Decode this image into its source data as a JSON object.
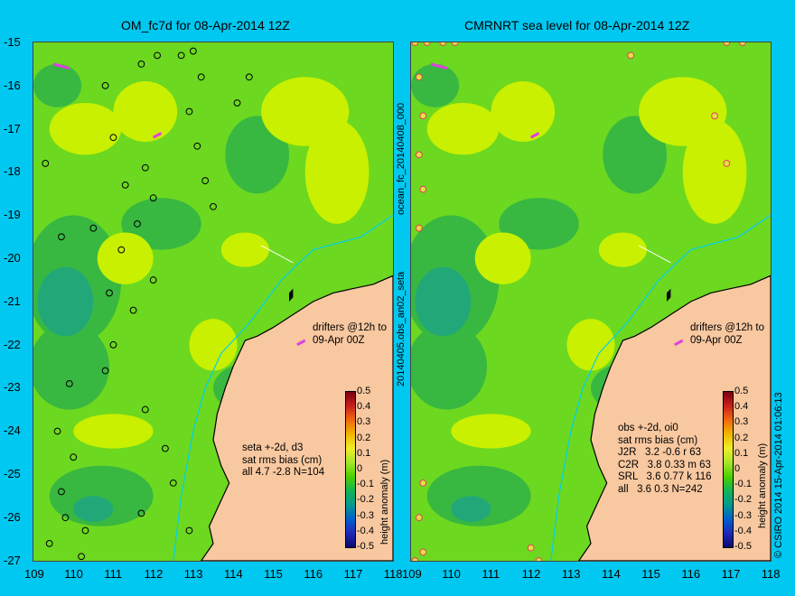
{
  "left_panel": {
    "title": "OM_fc7d for 08-Apr-2014 12Z",
    "drifters_note": "drifters @12h to\n09-Apr 00Z",
    "stats": "seta +-2d, d3\nsat rms bias (cm)\nall 4.7 -2.8 N=104"
  },
  "right_panel": {
    "title": "CMRNRT sea level  for 08-Apr-2014 12Z",
    "drifters_note": "drifters @12h to\n09-Apr 00Z",
    "stats": "obs +-2d, oi0\nsat rms bias (cm)\nJ2R   3.2 -0.6 r 63\nC2R   3.8 0.33 m 63\nSRL   3.6 0.77 k 116\nall   3.6 0.3 N=242"
  },
  "center_labels": [
    "ocean_fc_20140408_000",
    "20140405.obs_an02_seta"
  ],
  "y_ticks": [
    "-15",
    "-16",
    "-17",
    "-18",
    "-19",
    "-20",
    "-21",
    "-22",
    "-23",
    "-24",
    "-25",
    "-26",
    "-27"
  ],
  "x_ticks_left": [
    "109",
    "110",
    "111",
    "112",
    "113",
    "114",
    "115",
    "116",
    "117",
    "118"
  ],
  "x_ticks_right": [
    "109",
    "110",
    "111",
    "112",
    "113",
    "114",
    "115",
    "116",
    "117",
    "118"
  ],
  "colorbar": {
    "label": "height anomaly (m)",
    "ticks": [
      "0.5",
      "0.4",
      "0.3",
      "0.2",
      "0.1",
      "0",
      "-0.1",
      "-0.2",
      "-0.3",
      "-0.4",
      "-0.5"
    ]
  },
  "credit": "© CSIRO 2014   15-Apr-2014 01:06:13",
  "colors": {
    "background": "#00c8f0",
    "land": "#f8c8a0",
    "sea_base": "#6cd820",
    "sea_high": "#c8f000",
    "sea_low": "#38b840",
    "sea_lower": "#22a878",
    "drifter": "#e040e0",
    "current": "#00d0f0"
  },
  "map_data": {
    "lon_range": [
      109,
      118
    ],
    "lat_range": [
      -27,
      -15
    ],
    "coast": [
      [
        113.2,
        -27
      ],
      [
        113.5,
        -26.6
      ],
      [
        113.4,
        -26.2
      ],
      [
        113.7,
        -25.6
      ],
      [
        113.9,
        -25.2
      ],
      [
        113.7,
        -24.8
      ],
      [
        113.5,
        -24.2
      ],
      [
        113.6,
        -23.6
      ],
      [
        113.8,
        -23.0
      ],
      [
        114.0,
        -22.5
      ],
      [
        114.3,
        -21.9
      ],
      [
        114.6,
        -21.8
      ],
      [
        115.0,
        -21.6
      ],
      [
        115.5,
        -21.3
      ],
      [
        116.0,
        -21.0
      ],
      [
        116.5,
        -20.8
      ],
      [
        117.0,
        -20.7
      ],
      [
        117.5,
        -20.6
      ],
      [
        118,
        -20.4
      ],
      [
        118,
        -27
      ]
    ],
    "islands": [
      [
        [
          115.4,
          -20.8
        ],
        [
          115.5,
          -20.7
        ],
        [
          115.5,
          -20.9
        ],
        [
          115.4,
          -21.0
        ]
      ]
    ],
    "current_path": [
      [
        112.5,
        -27
      ],
      [
        112.7,
        -25.5
      ],
      [
        113.0,
        -24
      ],
      [
        113.3,
        -23
      ],
      [
        113.7,
        -22.2
      ],
      [
        114.4,
        -21.5
      ],
      [
        115.2,
        -20.5
      ],
      [
        116.0,
        -19.8
      ],
      [
        117.2,
        -19.5
      ],
      [
        118,
        -19.0
      ]
    ],
    "transect": [
      [
        114.7,
        -19.7
      ],
      [
        115.5,
        -20.1
      ]
    ],
    "high_blobs": [
      [
        110.3,
        -17.0,
        0.9,
        0.6
      ],
      [
        111.8,
        -16.6,
        0.8,
        0.7
      ],
      [
        115.8,
        -16.6,
        1.1,
        0.8
      ],
      [
        116.6,
        -18.0,
        0.8,
        1.2
      ],
      [
        114.3,
        -19.8,
        0.6,
        0.4
      ],
      [
        111.3,
        -20.0,
        0.7,
        0.6
      ],
      [
        111.0,
        -24.0,
        1.0,
        0.4
      ],
      [
        113.5,
        -22.0,
        0.6,
        0.6
      ],
      [
        116.3,
        -22.4,
        1.0,
        0.4
      ]
    ],
    "low_blobs": [
      [
        110.0,
        -20.5,
        1.2,
        1.5
      ],
      [
        109.9,
        -22.5,
        1.0,
        1.0
      ],
      [
        110.7,
        -25.5,
        1.3,
        0.7
      ],
      [
        112.2,
        -19.2,
        1.0,
        0.6
      ],
      [
        114.5,
        -23.0,
        1.0,
        0.6
      ],
      [
        109.6,
        -16.0,
        0.6,
        0.5
      ],
      [
        114.6,
        -17.6,
        0.8,
        0.9
      ]
    ],
    "lower_blobs": [
      [
        109.8,
        -21.0,
        0.7,
        0.8
      ],
      [
        110.5,
        -25.8,
        0.5,
        0.3
      ]
    ],
    "obs_left": [
      [
        109.3,
        -17.8
      ],
      [
        109.7,
        -19.5
      ],
      [
        110.5,
        -19.3
      ],
      [
        110.9,
        -20.8
      ],
      [
        111.2,
        -19.8
      ],
      [
        111.5,
        -21.2
      ],
      [
        111.0,
        -22.0
      ],
      [
        110.8,
        -22.6
      ],
      [
        109.9,
        -22.9
      ],
      [
        109.6,
        -24.0
      ],
      [
        110.0,
        -24.6
      ],
      [
        109.7,
        -25.4
      ],
      [
        109.8,
        -26.0
      ],
      [
        110.3,
        -26.3
      ],
      [
        109.4,
        -26.6
      ],
      [
        110.2,
        -26.9
      ],
      [
        111.3,
        -18.3
      ],
      [
        111.8,
        -17.9
      ],
      [
        111.6,
        -19.2
      ],
      [
        112.0,
        -18.6
      ],
      [
        111.0,
        -17.2
      ],
      [
        110.8,
        -16.0
      ],
      [
        111.7,
        -15.5
      ],
      [
        112.1,
        -15.3
      ],
      [
        112.7,
        -15.3
      ],
      [
        113.0,
        -15.2
      ],
      [
        113.2,
        -15.8
      ],
      [
        112.9,
        -16.6
      ],
      [
        113.1,
        -17.4
      ],
      [
        113.3,
        -18.2
      ],
      [
        113.5,
        -18.8
      ],
      [
        114.1,
        -16.4
      ],
      [
        114.4,
        -15.8
      ],
      [
        112.0,
        -20.5
      ],
      [
        111.8,
        -23.5
      ],
      [
        112.3,
        -24.4
      ],
      [
        112.5,
        -25.2
      ],
      [
        111.7,
        -25.9
      ],
      [
        112.9,
        -26.3
      ]
    ],
    "obs_right": [
      [
        109.1,
        -15.0
      ],
      [
        109.4,
        -15.0
      ],
      [
        109.8,
        -15.0
      ],
      [
        110.1,
        -15.0
      ],
      [
        109.2,
        -15.8
      ],
      [
        109.3,
        -16.7
      ],
      [
        109.2,
        -17.6
      ],
      [
        109.3,
        -18.4
      ],
      [
        109.2,
        -19.3
      ],
      [
        109.3,
        -25.2
      ],
      [
        109.2,
        -26.0
      ],
      [
        109.3,
        -26.8
      ],
      [
        109.1,
        -27.0
      ],
      [
        112.0,
        -26.7
      ],
      [
        112.2,
        -27.0
      ],
      [
        114.5,
        -15.3
      ],
      [
        116.9,
        -15.0
      ],
      [
        117.3,
        -15.0
      ],
      [
        116.6,
        -16.7
      ],
      [
        116.9,
        -17.8
      ]
    ],
    "drifter_tracks": [
      [
        [
          109.5,
          -15.5
        ],
        [
          109.9,
          -15.6
        ]
      ],
      [
        [
          112.0,
          -17.2
        ],
        [
          112.2,
          -17.1
        ]
      ],
      [
        [
          115.6,
          -22.0
        ],
        [
          115.8,
          -21.9
        ]
      ]
    ]
  }
}
